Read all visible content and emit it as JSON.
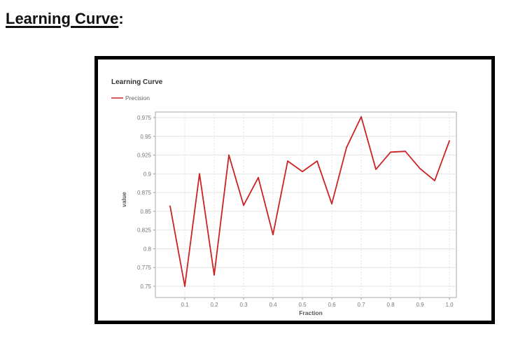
{
  "page": {
    "heading": "Learning Curve",
    "heading_suffix": ":"
  },
  "chart_data": {
    "type": "line",
    "title": "Learning Curve",
    "xlabel": "Fraction",
    "ylabel": "value",
    "legend_position": "top-left",
    "grid": true,
    "xlim": [
      0.0,
      1.0
    ],
    "ylim": [
      0.75,
      0.975
    ],
    "x_ticks": [
      "0.1",
      "0.2",
      "0.3",
      "0.4",
      "0.5",
      "0.6",
      "0.7",
      "0.8",
      "0.9",
      "1.0"
    ],
    "y_ticks": [
      "0.975",
      "0.95",
      "0.925",
      "0.9",
      "0.875",
      "0.85",
      "0.825",
      "0.8",
      "0.775",
      "0.75"
    ],
    "series": [
      {
        "name": "Precision",
        "color": "#cc2222",
        "x": [
          0.05,
          0.1,
          0.15,
          0.2,
          0.25,
          0.3,
          0.35,
          0.4,
          0.45,
          0.5,
          0.55,
          0.6,
          0.65,
          0.7,
          0.75,
          0.8,
          0.85,
          0.9,
          0.95,
          1.0
        ],
        "y": [
          0.857,
          0.75,
          0.9,
          0.765,
          0.925,
          0.858,
          0.895,
          0.819,
          0.917,
          0.903,
          0.917,
          0.86,
          0.935,
          0.976,
          0.906,
          0.929,
          0.93,
          0.907,
          0.891,
          0.944
        ]
      }
    ]
  }
}
